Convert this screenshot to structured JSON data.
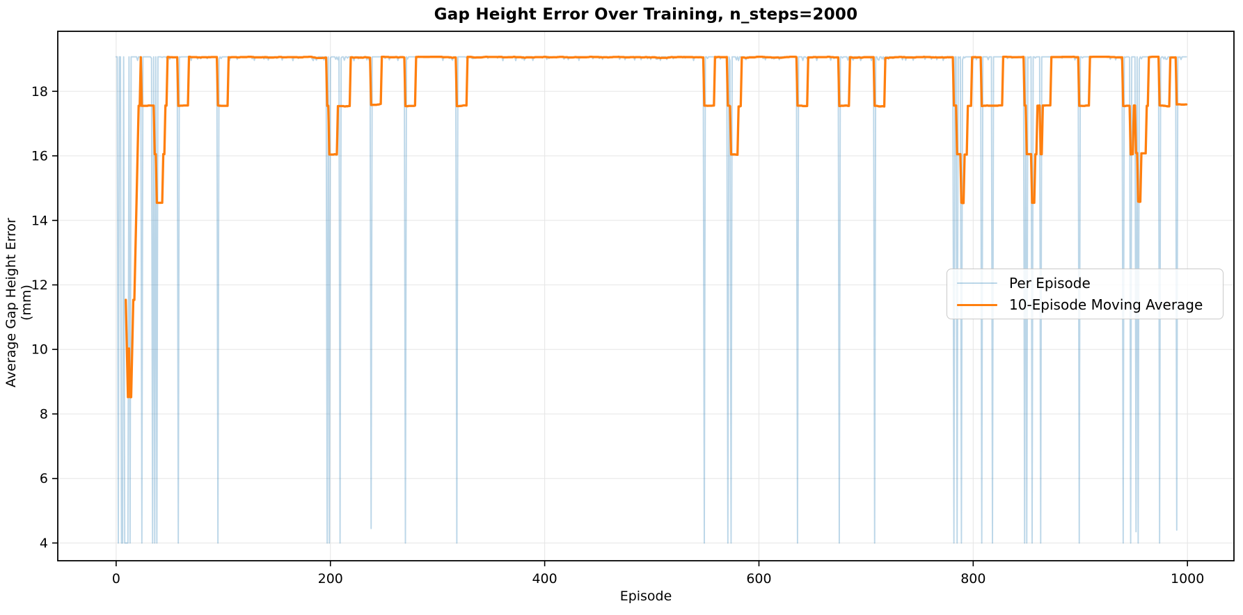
{
  "chart_data": {
    "type": "line",
    "title": "Gap Height Error Over Training, n_steps=2000",
    "xlabel": "Episode",
    "ylabel": "Average Gap Height Error (mm)",
    "x_ticks": [
      0,
      200,
      400,
      600,
      800,
      1000
    ],
    "y_ticks": [
      4,
      6,
      8,
      10,
      12,
      14,
      16,
      18
    ],
    "xlim": [
      -54.5,
      1043.4
    ],
    "ylim": [
      3.45,
      19.86
    ],
    "grid": true,
    "n_episodes": 1000,
    "series": [
      {
        "name": "per_episode",
        "label": "Per Episode",
        "color": "#1f77b4",
        "opacity": 0.3,
        "linewidth": 1.9,
        "base_value": 19.07,
        "failure_value": 4.0,
        "failure_episodes": [
          2,
          5,
          6,
          8,
          9,
          10,
          11,
          13,
          24,
          34,
          36,
          38,
          58,
          95,
          197,
          199,
          209,
          238,
          270,
          318,
          549,
          571,
          574,
          636,
          675,
          708,
          782,
          785,
          789,
          808,
          818,
          848,
          850,
          855,
          863,
          899,
          940,
          947,
          952,
          954,
          974,
          990
        ],
        "failure_value_overrides": {
          "238": 4.45,
          "952": 4.35,
          "990": 4.4
        }
      },
      {
        "name": "moving_average",
        "label": "10-Episode Moving Average",
        "color": "#ff7f0e",
        "opacity": 1.0,
        "linewidth": 3.3,
        "window": 10,
        "quantized_levels_mm": [
          19.07,
          17.56,
          16.06,
          14.55
        ],
        "start_value_mm": 11.5,
        "min_value_mm": 8.5,
        "end_value_mm": 17.56
      }
    ],
    "legend": {
      "position": "center right",
      "entries": [
        "Per Episode",
        "10-Episode Moving Average"
      ]
    },
    "axis_color": "#000000",
    "grid_color": "#e6e6e6"
  }
}
